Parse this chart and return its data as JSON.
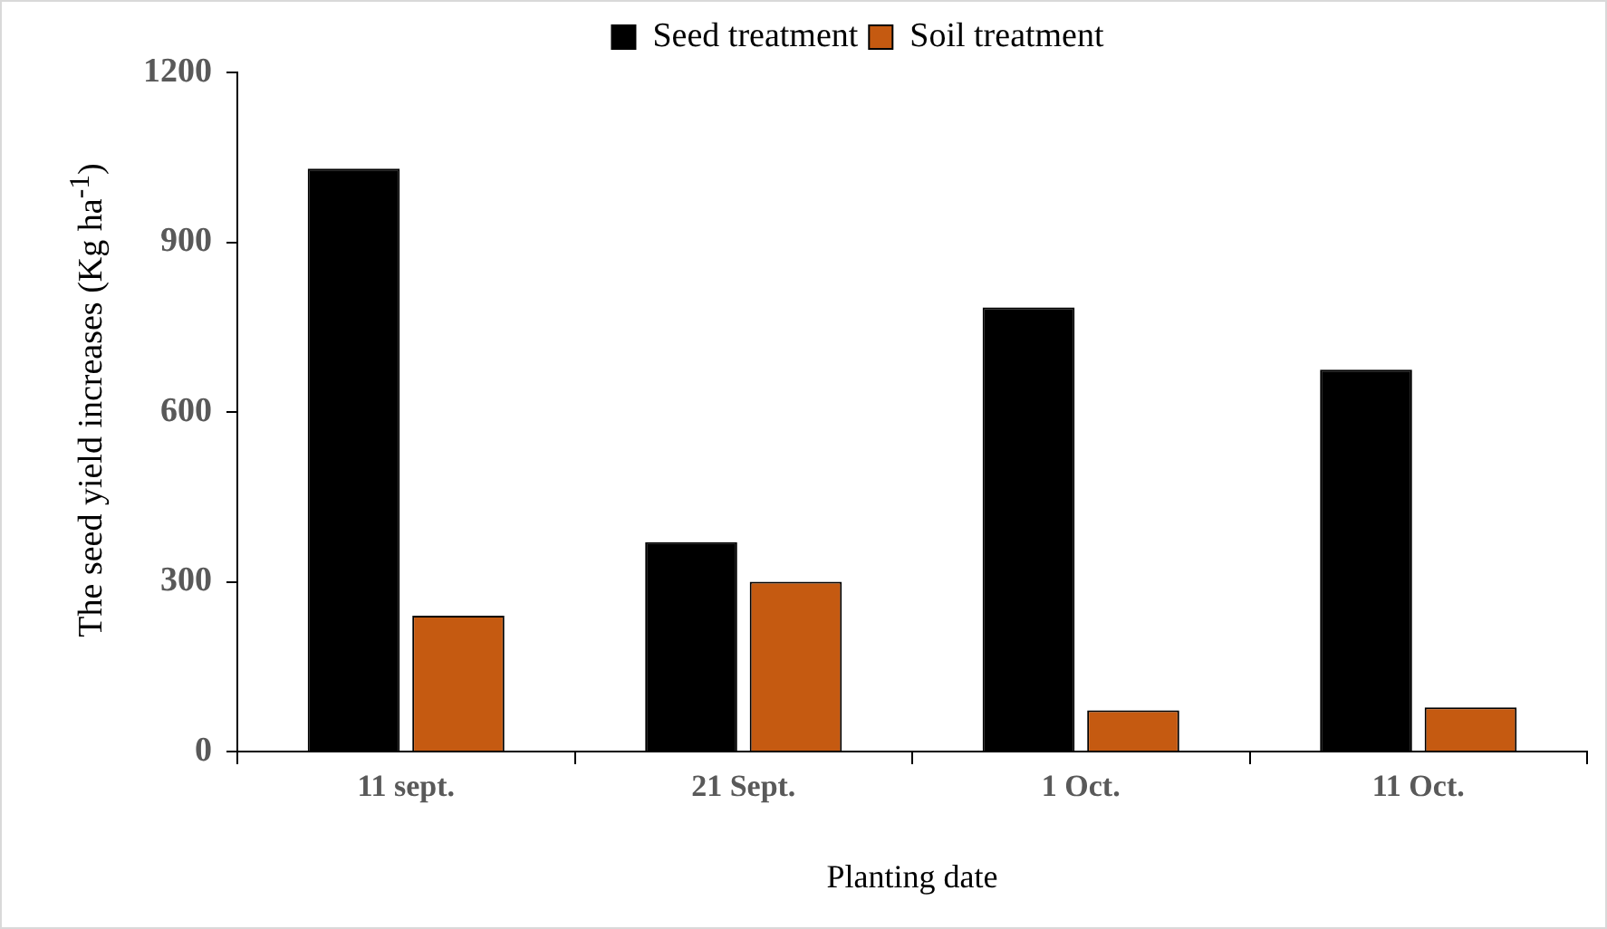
{
  "chart_data": {
    "type": "bar",
    "categories": [
      "11 sept.",
      "21 Sept.",
      "1 Oct.",
      "11 Oct."
    ],
    "series": [
      {
        "name": "Seed treatment",
        "color": "#000000",
        "values": [
          1030,
          370,
          785,
          675
        ]
      },
      {
        "name": "Soil treatment",
        "color": "#c55a11",
        "values": [
          240,
          300,
          73,
          78
        ]
      }
    ],
    "xlabel": "Planting date",
    "ylabel": "The seed yield increases (Kg ha$^{-1}$)",
    "ylim": [
      0,
      1200
    ],
    "yticks": [
      0,
      300,
      600,
      900,
      1200
    ],
    "grid": false,
    "legend": "top"
  }
}
